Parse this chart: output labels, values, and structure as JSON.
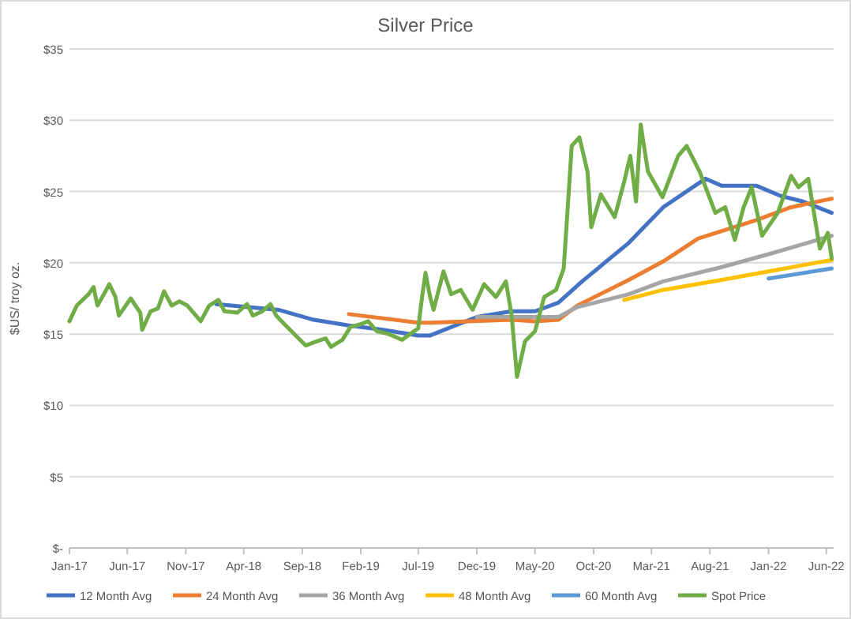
{
  "chart_data": {
    "type": "line",
    "title": "Silver Price",
    "ylabel": "$US/ troy oz.",
    "xlim": [
      "2017-01-01",
      "2022-06-20"
    ],
    "xticks": [
      {
        "value": "2017-01",
        "label": "Jan-17"
      },
      {
        "value": "2017-06",
        "label": "Jun-17"
      },
      {
        "value": "2017-11",
        "label": "Nov-17"
      },
      {
        "value": "2018-04",
        "label": "Apr-18"
      },
      {
        "value": "2018-09",
        "label": "Sep-18"
      },
      {
        "value": "2019-02",
        "label": "Feb-19"
      },
      {
        "value": "2019-07",
        "label": "Jul-19"
      },
      {
        "value": "2019-12",
        "label": "Dec-19"
      },
      {
        "value": "2020-05",
        "label": "May-20"
      },
      {
        "value": "2020-10",
        "label": "Oct-20"
      },
      {
        "value": "2021-03",
        "label": "Mar-21"
      },
      {
        "value": "2021-08",
        "label": "Aug-21"
      },
      {
        "value": "2022-01",
        "label": "Jan-22"
      },
      {
        "value": "2022-06",
        "label": "Jun-22"
      }
    ],
    "ylim": [
      0,
      35
    ],
    "yticks": [
      {
        "value": 0,
        "label": "$-"
      },
      {
        "value": 5,
        "label": "$5"
      },
      {
        "value": 10,
        "label": "$10"
      },
      {
        "value": 15,
        "label": "$15"
      },
      {
        "value": 20,
        "label": "$20"
      },
      {
        "value": 25,
        "label": "$25"
      },
      {
        "value": 30,
        "label": "$30"
      },
      {
        "value": 35,
        "label": "$35"
      }
    ],
    "grid": "y",
    "legend": "bottom",
    "marker": "none",
    "series": [
      {
        "name": "12 Month Avg",
        "color": "#4472c4",
        "x": [
          "2018-01-20",
          "2018-07-01",
          "2018-10-01",
          "2019-01-01",
          "2019-04-01",
          "2019-07-01",
          "2019-08-01",
          "2019-12-01",
          "2020-03-01",
          "2020-05-01",
          "2020-07-01",
          "2020-09-01",
          "2021-01-01",
          "2021-04-01",
          "2021-07-20",
          "2021-09-01",
          "2021-12-01",
          "2022-02-01",
          "2022-04-01",
          "2022-06-15"
        ],
        "values": [
          17.1,
          16.7,
          16.0,
          15.6,
          15.3,
          14.9,
          14.9,
          16.2,
          16.6,
          16.6,
          17.2,
          18.7,
          21.4,
          23.9,
          25.9,
          25.4,
          25.4,
          24.7,
          24.3,
          23.5
        ]
      },
      {
        "name": "24 Month Avg",
        "color": "#ed7d31",
        "x": [
          "2019-01-01",
          "2019-07-01",
          "2019-08-01",
          "2020-03-01",
          "2020-05-01",
          "2020-07-01",
          "2020-08-20",
          "2021-01-01",
          "2021-04-01",
          "2021-07-01",
          "2021-12-01",
          "2022-03-01",
          "2022-06-15"
        ],
        "values": [
          16.4,
          15.8,
          15.8,
          16.0,
          15.9,
          16.0,
          17.0,
          18.8,
          20.1,
          21.7,
          23.0,
          23.9,
          24.5
        ]
      },
      {
        "name": "36 Month Avg",
        "color": "#a5a5a5",
        "x": [
          "2019-12-01",
          "2020-05-01",
          "2020-07-01",
          "2020-08-20",
          "2021-01-01",
          "2021-04-01",
          "2021-09-01",
          "2022-01-01",
          "2022-06-15"
        ],
        "values": [
          16.2,
          16.2,
          16.2,
          16.9,
          17.8,
          18.7,
          19.7,
          20.6,
          21.9
        ]
      },
      {
        "name": "48 Month Avg",
        "color": "#ffc000",
        "x": [
          "2020-12-20",
          "2021-04-01",
          "2021-09-01",
          "2022-01-01",
          "2022-06-15"
        ],
        "values": [
          17.4,
          18.1,
          18.8,
          19.4,
          20.2
        ]
      },
      {
        "name": "60 Month Avg",
        "color": "#5b9bd5",
        "x": [
          "2022-01-01",
          "2022-06-15"
        ],
        "values": [
          18.9,
          19.6
        ]
      },
      {
        "name": "Spot Price",
        "color": "#70ad47",
        "x": [
          "2017-01-01",
          "2017-01-20",
          "2017-02-20",
          "2017-03-05",
          "2017-03-15",
          "2017-04-05",
          "2017-04-15",
          "2017-05-01",
          "2017-05-10",
          "2017-06-10",
          "2017-07-05",
          "2017-07-10",
          "2017-08-01",
          "2017-08-20",
          "2017-09-05",
          "2017-09-25",
          "2017-10-15",
          "2017-11-05",
          "2017-12-10",
          "2018-01-01",
          "2018-01-25",
          "2018-02-10",
          "2018-03-15",
          "2018-04-10",
          "2018-04-25",
          "2018-05-20",
          "2018-06-10",
          "2018-06-25",
          "2018-07-20",
          "2018-08-15",
          "2018-09-10",
          "2018-10-10",
          "2018-11-01",
          "2018-11-15",
          "2018-12-15",
          "2019-01-05",
          "2019-02-01",
          "2019-02-20",
          "2019-03-15",
          "2019-04-15",
          "2019-05-20",
          "2019-06-15",
          "2019-07-01",
          "2019-07-10",
          "2019-07-20",
          "2019-08-01",
          "2019-08-10",
          "2019-09-05",
          "2019-09-25",
          "2019-10-20",
          "2019-11-20",
          "2019-12-20",
          "2020-01-20",
          "2020-02-15",
          "2020-03-01",
          "2020-03-15",
          "2020-04-05",
          "2020-05-01",
          "2020-05-25",
          "2020-06-25",
          "2020-07-15",
          "2020-08-05",
          "2020-08-25",
          "2020-09-15",
          "2020-09-25",
          "2020-10-20",
          "2020-11-25",
          "2020-12-20",
          "2021-01-05",
          "2021-01-20",
          "2021-02-01",
          "2021-02-20",
          "2021-03-30",
          "2021-05-10",
          "2021-06-01",
          "2021-07-05",
          "2021-08-15",
          "2021-09-10",
          "2021-10-05",
          "2021-10-28",
          "2021-11-18",
          "2021-12-15",
          "2022-01-25",
          "2022-03-01",
          "2022-03-20",
          "2022-04-15",
          "2022-05-15",
          "2022-06-05",
          "2022-06-15"
        ],
        "values": [
          15.9,
          17.0,
          17.8,
          18.3,
          17.0,
          18.0,
          18.5,
          17.6,
          16.3,
          17.5,
          16.5,
          15.3,
          16.6,
          16.8,
          18.0,
          17.0,
          17.3,
          17.0,
          15.9,
          17.0,
          17.4,
          16.6,
          16.5,
          17.1,
          16.3,
          16.6,
          17.1,
          16.3,
          15.6,
          14.9,
          14.2,
          14.5,
          14.7,
          14.1,
          14.6,
          15.5,
          15.7,
          15.9,
          15.2,
          15.0,
          14.6,
          15.1,
          15.4,
          17.4,
          19.3,
          17.6,
          16.7,
          19.4,
          17.8,
          18.1,
          16.7,
          18.5,
          17.6,
          18.7,
          16.3,
          12.0,
          14.5,
          15.2,
          17.6,
          18.1,
          19.6,
          28.2,
          28.8,
          26.4,
          22.5,
          24.8,
          23.2,
          25.7,
          27.5,
          24.3,
          29.7,
          26.4,
          24.6,
          27.5,
          28.2,
          26.4,
          23.5,
          23.9,
          21.6,
          23.9,
          25.3,
          21.9,
          23.5,
          26.1,
          25.3,
          25.9,
          21.0,
          22.1,
          20.3
        ]
      }
    ]
  }
}
